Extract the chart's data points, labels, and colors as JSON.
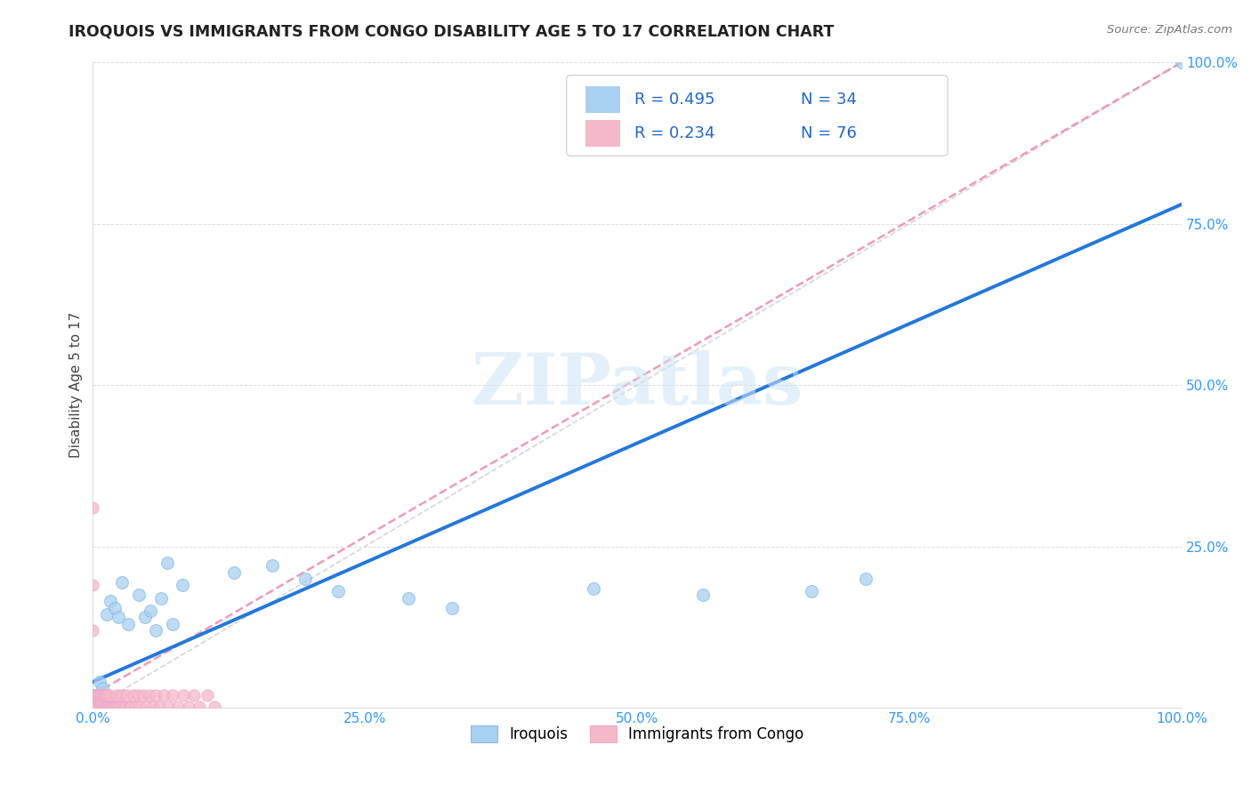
{
  "title": "IROQUOIS VS IMMIGRANTS FROM CONGO DISABILITY AGE 5 TO 17 CORRELATION CHART",
  "source": "Source: ZipAtlas.com",
  "ylabel": "Disability Age 5 to 17",
  "xmin": 0.0,
  "xmax": 1.0,
  "ymin": 0.0,
  "ymax": 1.0,
  "xtick_labels": [
    "0.0%",
    "25.0%",
    "50.0%",
    "75.0%",
    "100.0%"
  ],
  "xtick_vals": [
    0.0,
    0.25,
    0.5,
    0.75,
    1.0
  ],
  "ytick_labels": [
    "25.0%",
    "50.0%",
    "75.0%",
    "100.0%"
  ],
  "ytick_vals": [
    0.25,
    0.5,
    0.75,
    1.0
  ],
  "iroquois_color": "#a8d0f0",
  "congo_color": "#f5b8c8",
  "trendline_iroquois_color": "#2277dd",
  "trendline_congo_color": "#ee88aa",
  "diagonal_color": "#cccccc",
  "R_iroquois": 0.495,
  "N_iroquois": 34,
  "R_congo": 0.234,
  "N_congo": 76,
  "legend_label_iroquois": "Iroquois",
  "legend_label_congo": "Immigrants from Congo",
  "watermark": "ZIPatlas",
  "iroquois_trend_x0": 0.0,
  "iroquois_trend_y0": 0.04,
  "iroquois_trend_x1": 1.0,
  "iroquois_trend_y1": 0.78,
  "congo_trend_x0": 0.0,
  "congo_trend_y0": 0.02,
  "congo_trend_x1": 1.0,
  "congo_trend_y1": 1.0,
  "iroquois_x": [
    0.001,
    0.001,
    0.003,
    0.004,
    0.005,
    0.006,
    0.007,
    0.009,
    0.011,
    0.013,
    0.016,
    0.02,
    0.023,
    0.027,
    0.032,
    0.042,
    0.048,
    0.053,
    0.058,
    0.063,
    0.068,
    0.073,
    0.082,
    0.13,
    0.165,
    0.195,
    0.225,
    0.46,
    0.56,
    0.66,
    0.71,
    0.33,
    0.29,
    1.0
  ],
  "iroquois_y": [
    0.02,
    0.001,
    0.01,
    0.001,
    0.01,
    0.04,
    0.02,
    0.03,
    0.02,
    0.145,
    0.165,
    0.155,
    0.14,
    0.195,
    0.13,
    0.175,
    0.14,
    0.15,
    0.12,
    0.17,
    0.225,
    0.13,
    0.19,
    0.21,
    0.22,
    0.2,
    0.18,
    0.185,
    0.175,
    0.18,
    0.2,
    0.155,
    0.17,
    1.0
  ],
  "congo_x": [
    0.001,
    0.001,
    0.001,
    0.002,
    0.002,
    0.002,
    0.003,
    0.003,
    0.003,
    0.004,
    0.004,
    0.004,
    0.005,
    0.005,
    0.005,
    0.006,
    0.006,
    0.006,
    0.007,
    0.007,
    0.007,
    0.008,
    0.008,
    0.009,
    0.009,
    0.009,
    0.01,
    0.01,
    0.01,
    0.011,
    0.011,
    0.012,
    0.012,
    0.013,
    0.013,
    0.014,
    0.015,
    0.015,
    0.016,
    0.017,
    0.018,
    0.019,
    0.02,
    0.021,
    0.022,
    0.023,
    0.025,
    0.026,
    0.028,
    0.03,
    0.031,
    0.033,
    0.035,
    0.037,
    0.039,
    0.041,
    0.043,
    0.046,
    0.049,
    0.052,
    0.055,
    0.058,
    0.061,
    0.065,
    0.069,
    0.073,
    0.078,
    0.083,
    0.088,
    0.093,
    0.098,
    0.105,
    0.112,
    0.0,
    0.0,
    0.0
  ],
  "congo_y": [
    0.001,
    0.01,
    0.02,
    0.001,
    0.01,
    0.02,
    0.001,
    0.01,
    0.02,
    0.001,
    0.01,
    0.02,
    0.001,
    0.01,
    0.02,
    0.001,
    0.01,
    0.02,
    0.001,
    0.01,
    0.02,
    0.001,
    0.01,
    0.001,
    0.01,
    0.02,
    0.001,
    0.01,
    0.02,
    0.001,
    0.02,
    0.001,
    0.02,
    0.001,
    0.02,
    0.001,
    0.001,
    0.02,
    0.001,
    0.001,
    0.001,
    0.001,
    0.001,
    0.001,
    0.02,
    0.001,
    0.001,
    0.02,
    0.001,
    0.001,
    0.02,
    0.001,
    0.001,
    0.02,
    0.001,
    0.02,
    0.001,
    0.02,
    0.001,
    0.02,
    0.001,
    0.02,
    0.001,
    0.02,
    0.001,
    0.02,
    0.001,
    0.02,
    0.001,
    0.02,
    0.001,
    0.02,
    0.001,
    0.31,
    0.19,
    0.12
  ]
}
